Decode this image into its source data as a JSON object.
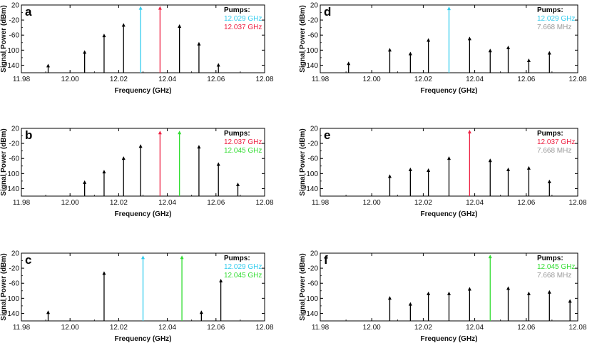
{
  "figure": {
    "colors": {
      "black": "#000000",
      "cyan": "#33ccee",
      "red": "#ee2244",
      "green": "#33dd33",
      "gray": "#999999"
    }
  },
  "chart_data": [
    {
      "type": "stem",
      "panel": "a",
      "xlabel": "Frequency (GHz)",
      "ylabel": "Signal Power (dBm)",
      "xlim": [
        11.98,
        12.08
      ],
      "ylim": [
        -160,
        20
      ],
      "xticks": [
        "11.98",
        "12.00",
        "12.02",
        "12.04",
        "12.06",
        "12.08"
      ],
      "yticks": [
        "20",
        "-20",
        "-60",
        "-100",
        "-140"
      ],
      "legend_title": "Pumps:",
      "legend": [
        {
          "label": "12.029 GHz",
          "color": "cyan"
        },
        {
          "label": "12.037 GHz",
          "color": "red"
        }
      ],
      "stems": [
        {
          "x": 11.991,
          "y": -138,
          "color": "black"
        },
        {
          "x": 12.006,
          "y": -102,
          "color": "black"
        },
        {
          "x": 12.014,
          "y": -58,
          "color": "black"
        },
        {
          "x": 12.022,
          "y": -30,
          "color": "black"
        },
        {
          "x": 12.029,
          "y": 15,
          "color": "cyan"
        },
        {
          "x": 12.037,
          "y": 15,
          "color": "red"
        },
        {
          "x": 12.045,
          "y": -33,
          "color": "black"
        },
        {
          "x": 12.053,
          "y": -80,
          "color": "black"
        },
        {
          "x": 12.061,
          "y": -136,
          "color": "black"
        }
      ]
    },
    {
      "type": "stem",
      "panel": "b",
      "xlabel": "Frequency (GHz)",
      "ylabel": "Signal Power (dBm)",
      "xlim": [
        11.98,
        12.08
      ],
      "ylim": [
        -160,
        20
      ],
      "xticks": [
        "11.98",
        "12.00",
        "12.02",
        "12.04",
        "12.06",
        "12.08"
      ],
      "yticks": [
        "20",
        "-20",
        "-60",
        "-100",
        "-140"
      ],
      "legend_title": "Pumps:",
      "legend": [
        {
          "label": "12.037 GHz",
          "color": "red"
        },
        {
          "label": "12.045 GHz",
          "color": "green"
        }
      ],
      "stems": [
        {
          "x": 12.006,
          "y": -120,
          "color": "black"
        },
        {
          "x": 12.014,
          "y": -92,
          "color": "black"
        },
        {
          "x": 12.022,
          "y": -56,
          "color": "black"
        },
        {
          "x": 12.029,
          "y": -24,
          "color": "black"
        },
        {
          "x": 12.037,
          "y": 12,
          "color": "red"
        },
        {
          "x": 12.045,
          "y": 12,
          "color": "green"
        },
        {
          "x": 12.053,
          "y": -26,
          "color": "black"
        },
        {
          "x": 12.061,
          "y": -72,
          "color": "black"
        },
        {
          "x": 12.069,
          "y": -126,
          "color": "black"
        }
      ]
    },
    {
      "type": "stem",
      "panel": "c",
      "xlabel": "Frequency (GHz)",
      "ylabel": "Signal Power (dBm)",
      "xlim": [
        11.98,
        12.08
      ],
      "ylim": [
        -160,
        20
      ],
      "xticks": [
        "11.98",
        "12.00",
        "12.02",
        "12.04",
        "12.06",
        "12.08"
      ],
      "yticks": [
        "20",
        "-20",
        "-60",
        "-100",
        "-140"
      ],
      "legend_title": "Pumps:",
      "legend": [
        {
          "label": "12.029 GHz",
          "color": "cyan"
        },
        {
          "label": "12.045 GHz",
          "color": "green"
        }
      ],
      "stems": [
        {
          "x": 11.991,
          "y": -134,
          "color": "black"
        },
        {
          "x": 12.014,
          "y": -30,
          "color": "black"
        },
        {
          "x": 12.03,
          "y": 12,
          "color": "cyan"
        },
        {
          "x": 12.046,
          "y": 12,
          "color": "green"
        },
        {
          "x": 12.054,
          "y": -134,
          "color": "black"
        },
        {
          "x": 12.062,
          "y": -50,
          "color": "black"
        }
      ]
    },
    {
      "type": "stem",
      "panel": "d",
      "xlabel": "Frequency (GHz)",
      "ylabel": "Signal Power (dBm)",
      "xlim": [
        11.98,
        12.08
      ],
      "ylim": [
        -160,
        20
      ],
      "xticks": [
        "11.98",
        "12.00",
        "12.02",
        "12.04",
        "12.06",
        "12.08"
      ],
      "yticks": [
        "20",
        "-20",
        "-60",
        "-100",
        "-140"
      ],
      "legend_title": "Pumps:",
      "legend": [
        {
          "label": "12.029 GHz",
          "color": "cyan"
        },
        {
          "label": "7.668 MHz",
          "color": "gray"
        }
      ],
      "stems": [
        {
          "x": 11.991,
          "y": -132,
          "color": "black"
        },
        {
          "x": 12.007,
          "y": -96,
          "color": "black"
        },
        {
          "x": 12.015,
          "y": -106,
          "color": "black"
        },
        {
          "x": 12.022,
          "y": -70,
          "color": "black"
        },
        {
          "x": 12.03,
          "y": 14,
          "color": "cyan"
        },
        {
          "x": 12.038,
          "y": -66,
          "color": "black"
        },
        {
          "x": 12.046,
          "y": -98,
          "color": "black"
        },
        {
          "x": 12.053,
          "y": -90,
          "color": "black"
        },
        {
          "x": 12.061,
          "y": -124,
          "color": "black"
        },
        {
          "x": 12.069,
          "y": -104,
          "color": "black"
        }
      ]
    },
    {
      "type": "stem",
      "panel": "e",
      "xlabel": "Frequency (GHz)",
      "ylabel": "Signal Power (dBm)",
      "xlim": [
        11.98,
        12.08
      ],
      "ylim": [
        -160,
        20
      ],
      "xticks": [
        "11.98",
        "12.00",
        "12.02",
        "12.04",
        "12.06",
        "12.08"
      ],
      "yticks": [
        "20",
        "-20",
        "-60",
        "-100",
        "-140"
      ],
      "legend_title": "Pumps:",
      "legend": [
        {
          "label": "12.037 GHz",
          "color": "red"
        },
        {
          "label": "7.668 MHz",
          "color": "gray"
        }
      ],
      "stems": [
        {
          "x": 12.007,
          "y": -104,
          "color": "black"
        },
        {
          "x": 12.015,
          "y": -86,
          "color": "black"
        },
        {
          "x": 12.022,
          "y": -88,
          "color": "black"
        },
        {
          "x": 12.03,
          "y": -56,
          "color": "black"
        },
        {
          "x": 12.038,
          "y": 14,
          "color": "red"
        },
        {
          "x": 12.046,
          "y": -62,
          "color": "black"
        },
        {
          "x": 12.053,
          "y": -86,
          "color": "black"
        },
        {
          "x": 12.061,
          "y": -82,
          "color": "black"
        },
        {
          "x": 12.069,
          "y": -118,
          "color": "black"
        }
      ]
    },
    {
      "type": "stem",
      "panel": "f",
      "xlabel": "Frequency (GHz)",
      "ylabel": "Signal Power (dBm)",
      "xlim": [
        11.98,
        12.08
      ],
      "ylim": [
        -160,
        20
      ],
      "xticks": [
        "11.98",
        "12.00",
        "12.02",
        "12.04",
        "12.06",
        "12.08"
      ],
      "yticks": [
        "20",
        "-20",
        "-60",
        "-100",
        "-140"
      ],
      "legend_title": "Pumps:",
      "legend": [
        {
          "label": "12.045 GHz",
          "color": "green"
        },
        {
          "label": "7.668 MHz",
          "color": "gray"
        }
      ],
      "stems": [
        {
          "x": 12.007,
          "y": -96,
          "color": "black"
        },
        {
          "x": 12.015,
          "y": -112,
          "color": "black"
        },
        {
          "x": 12.022,
          "y": -84,
          "color": "black"
        },
        {
          "x": 12.03,
          "y": -84,
          "color": "black"
        },
        {
          "x": 12.038,
          "y": -72,
          "color": "black"
        },
        {
          "x": 12.046,
          "y": 14,
          "color": "green"
        },
        {
          "x": 12.053,
          "y": -70,
          "color": "black"
        },
        {
          "x": 12.061,
          "y": -84,
          "color": "black"
        },
        {
          "x": 12.069,
          "y": -80,
          "color": "black"
        },
        {
          "x": 12.077,
          "y": -104,
          "color": "black"
        }
      ]
    }
  ]
}
